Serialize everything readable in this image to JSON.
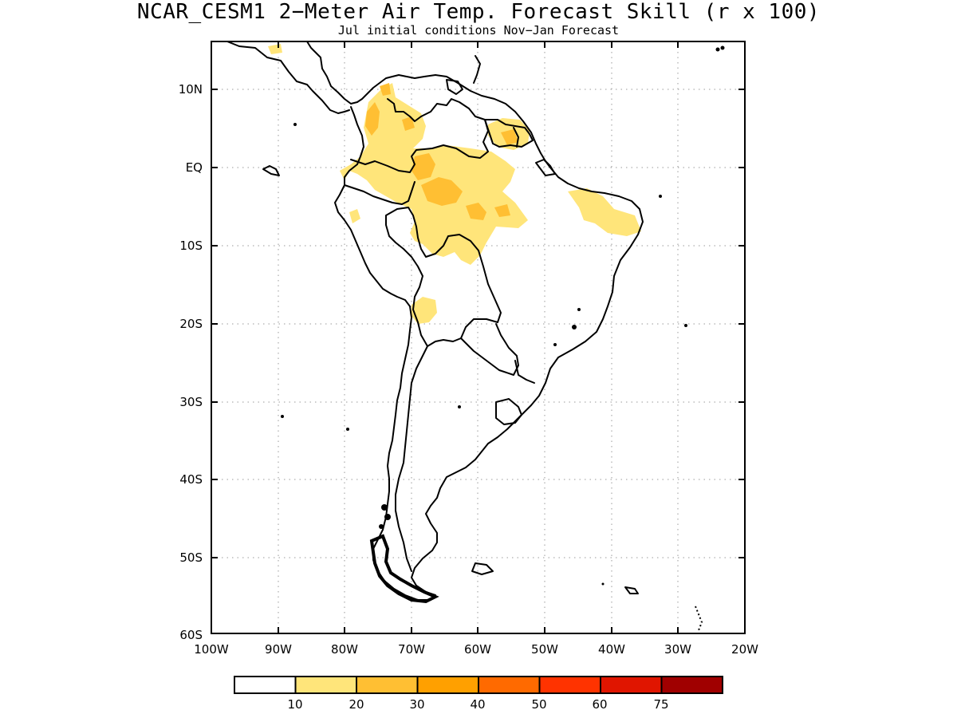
{
  "title": "NCAR_CESM1 2−Meter Air Temp. Forecast Skill (r x 100)",
  "subtitle": "Jul initial conditions   Nov−Jan Forecast",
  "map": {
    "region": "South America",
    "lon_range": [
      -100,
      -20
    ],
    "lat_range": [
      -60,
      15
    ],
    "grid": "dotted",
    "lat_labels": [
      "10N",
      "EQ",
      "10S",
      "20S",
      "30S",
      "40S",
      "50S",
      "60S"
    ],
    "lon_labels": [
      "100W",
      "90W",
      "80W",
      "70W",
      "60W",
      "50W",
      "40W",
      "30W",
      "20W"
    ]
  },
  "legend": {
    "colors": [
      "#ffffff",
      "#ffe57a",
      "#ffbf33",
      "#ffa000",
      "#ff6a00",
      "#ff3300",
      "#e01500",
      "#a00000"
    ],
    "labels": [
      "10",
      "20",
      "30",
      "40",
      "50",
      "60",
      "75"
    ]
  }
}
